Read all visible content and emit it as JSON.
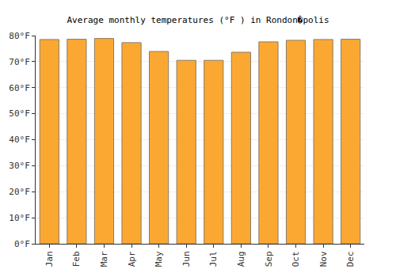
{
  "chart_data": {
    "type": "bar",
    "title": "Average monthly temperatures (°F ) in Rondon�polis",
    "categories": [
      "Jan",
      "Feb",
      "Mar",
      "Apr",
      "May",
      "Jun",
      "Jul",
      "Aug",
      "Sep",
      "Oct",
      "Nov",
      "Dec"
    ],
    "values": [
      78.5,
      78.6,
      78.9,
      77.3,
      73.9,
      70.5,
      70.5,
      73.6,
      77.6,
      78.2,
      78.5,
      78.6
    ],
    "color": "#fba833",
    "ylim": [
      0,
      80
    ],
    "yticks": [
      {
        "value": 0,
        "label": "0°F"
      },
      {
        "value": 10,
        "label": "10°F"
      },
      {
        "value": 20,
        "label": "20°F"
      },
      {
        "value": 30,
        "label": "30°F"
      },
      {
        "value": 40,
        "label": "40°F"
      },
      {
        "value": 50,
        "label": "50°F"
      },
      {
        "value": 60,
        "label": "60°F"
      },
      {
        "value": 70,
        "label": "70°F"
      },
      {
        "value": 80,
        "label": "80°F"
      }
    ],
    "grid": true
  }
}
